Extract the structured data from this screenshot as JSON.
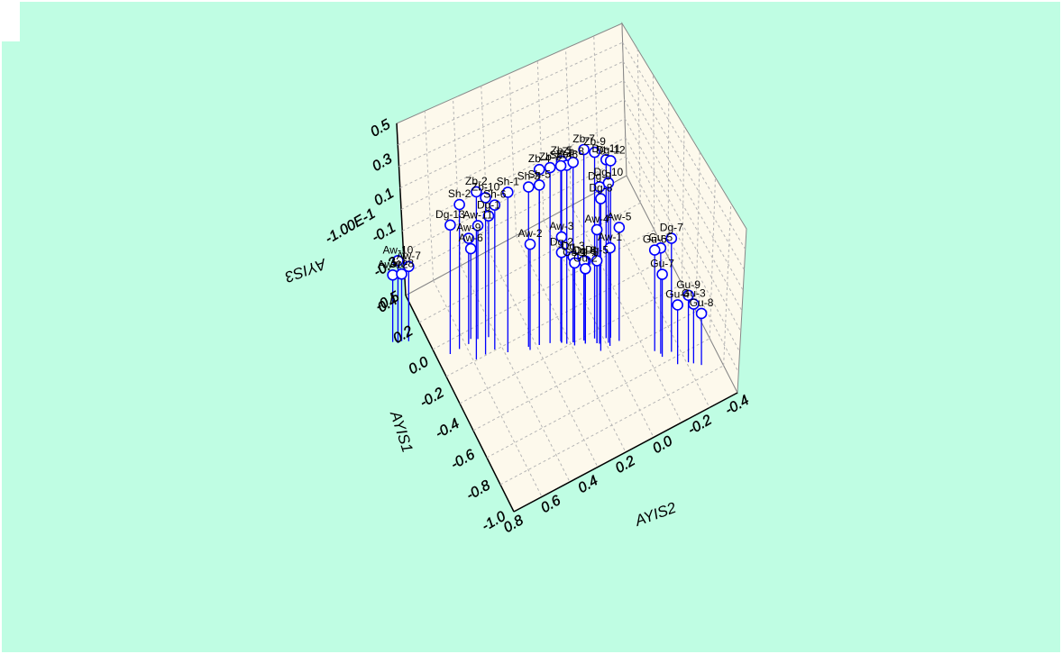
{
  "chart_data": {
    "type": "scatter",
    "plot_style": "3d-scatter-with-drop-lines",
    "title": "",
    "axes": {
      "x": {
        "label": "AYIS1",
        "ticks": [
          "0.4",
          "0.2",
          "0.0",
          "-0.2",
          "-0.4",
          "-0.6",
          "-0.8",
          "-1.0"
        ]
      },
      "y": {
        "label": "AYIS2",
        "ticks": [
          "0.8",
          "0.6",
          "0.4",
          "0.2",
          "0.0",
          "-0.2",
          "-0.4"
        ]
      },
      "z": {
        "label": "AYIS3",
        "ticks": [
          "0.5",
          "0.3",
          "0.1",
          "-0.1",
          "-0.3",
          "-0.5"
        ],
        "extra_tick": "-1.00E-1"
      }
    },
    "marker_color": "#0000ff",
    "panel_color": "#fdf9ec",
    "grid": true,
    "points": [
      {
        "label": "Zb-7",
        "x": 0.0,
        "y": 0.0,
        "z": 0.5
      },
      {
        "label": "Zb-9",
        "x": -0.02,
        "y": -0.05,
        "z": 0.47
      },
      {
        "label": "Dg-11",
        "x": -0.05,
        "y": -0.1,
        "z": 0.42
      },
      {
        "label": "Dg-12",
        "x": -0.06,
        "y": -0.12,
        "z": 0.41
      },
      {
        "label": "Zb-5",
        "x": 0.05,
        "y": 0.1,
        "z": 0.44
      },
      {
        "label": "Zb-6",
        "x": 0.03,
        "y": 0.08,
        "z": 0.42
      },
      {
        "label": "Zb-8",
        "x": 0.02,
        "y": 0.05,
        "z": 0.43
      },
      {
        "label": "Zb-3",
        "x": 0.08,
        "y": 0.15,
        "z": 0.4
      },
      {
        "label": "Zb-4",
        "x": 0.1,
        "y": 0.2,
        "z": 0.4
      },
      {
        "label": "Sh-4",
        "x": 0.06,
        "y": 0.1,
        "z": 0.4
      },
      {
        "label": "Dg-10",
        "x": -0.08,
        "y": -0.1,
        "z": 0.3
      },
      {
        "label": "Dg-8",
        "x": -0.1,
        "y": -0.05,
        "z": 0.25
      },
      {
        "label": "Dg-9",
        "x": -0.06,
        "y": -0.06,
        "z": 0.28
      },
      {
        "label": "Zb-2",
        "x": 0.2,
        "y": 0.5,
        "z": 0.35
      },
      {
        "label": "Sh-1",
        "x": 0.15,
        "y": 0.35,
        "z": 0.3
      },
      {
        "label": "Sh-3",
        "x": 0.12,
        "y": 0.25,
        "z": 0.3
      },
      {
        "label": "Zb-10",
        "x": 0.2,
        "y": 0.45,
        "z": 0.28
      },
      {
        "label": "Sh-6",
        "x": 0.2,
        "y": 0.4,
        "z": 0.2
      },
      {
        "label": "Sh-5",
        "x": 0.1,
        "y": 0.2,
        "z": 0.3
      },
      {
        "label": "Sh-2",
        "x": 0.3,
        "y": 0.55,
        "z": 0.2
      },
      {
        "label": "Dg-13",
        "x": 0.3,
        "y": 0.6,
        "z": 0.1
      },
      {
        "label": "Aw-11",
        "x": 0.3,
        "y": 0.45,
        "z": 0.0
      },
      {
        "label": "Dg-1",
        "x": 0.28,
        "y": 0.4,
        "z": 0.05
      },
      {
        "label": "Aw-9",
        "x": 0.3,
        "y": 0.5,
        "z": -0.05
      },
      {
        "label": "Aw-6",
        "x": 0.32,
        "y": 0.48,
        "z": -0.15
      },
      {
        "label": "Aw-2",
        "x": 0.1,
        "y": 0.25,
        "z": -0.05
      },
      {
        "label": "Aw-3",
        "x": 0.05,
        "y": 0.1,
        "z": -0.05
      },
      {
        "label": "Aw-4",
        "x": -0.05,
        "y": -0.05,
        "z": 0.0
      },
      {
        "label": "Aw-5",
        "x": -0.1,
        "y": -0.15,
        "z": 0.0
      },
      {
        "label": "Aw-1",
        "x": -0.1,
        "y": -0.1,
        "z": -0.1
      },
      {
        "label": "Dg-2",
        "x": 0.05,
        "y": 0.1,
        "z": -0.15
      },
      {
        "label": "Dg-3",
        "x": 0.02,
        "y": 0.05,
        "z": -0.18
      },
      {
        "label": "Dg-4",
        "x": -0.02,
        "y": 0.0,
        "z": -0.2
      },
      {
        "label": "Dg-5",
        "x": -0.05,
        "y": -0.05,
        "z": -0.2
      },
      {
        "label": "Dg-6",
        "x": 0.0,
        "y": 0.0,
        "z": -0.22
      },
      {
        "label": "Gu-1",
        "x": 0.0,
        "y": 0.05,
        "z": -0.2
      },
      {
        "label": "Gu-2",
        "x": -0.02,
        "y": 0.0,
        "z": -0.25
      },
      {
        "label": "Aw-10",
        "x": 0.5,
        "y": 0.8,
        "z": -0.2
      },
      {
        "label": "Aw-7",
        "x": 0.48,
        "y": 0.75,
        "z": -0.25
      },
      {
        "label": "Aw-12",
        "x": 0.52,
        "y": 0.82,
        "z": -0.3
      },
      {
        "label": "Aw-8",
        "x": 0.5,
        "y": 0.78,
        "z": -0.3
      },
      {
        "label": "Dg-7",
        "x": -0.3,
        "y": -0.35,
        "z": 0.0
      },
      {
        "label": "Gu-5",
        "x": -0.28,
        "y": -0.3,
        "z": -0.05
      },
      {
        "label": "Gu-6",
        "x": -0.25,
        "y": -0.28,
        "z": -0.08
      },
      {
        "label": "Gu-7",
        "x": -0.3,
        "y": -0.3,
        "z": -0.2
      },
      {
        "label": "Gu-9",
        "x": -0.4,
        "y": -0.4,
        "z": -0.3
      },
      {
        "label": "Gu-4",
        "x": -0.38,
        "y": -0.35,
        "z": -0.35
      },
      {
        "label": "Gu-3",
        "x": -0.42,
        "y": -0.42,
        "z": -0.35
      },
      {
        "label": "Gu-8",
        "x": -0.45,
        "y": -0.45,
        "z": -0.4
      }
    ]
  }
}
